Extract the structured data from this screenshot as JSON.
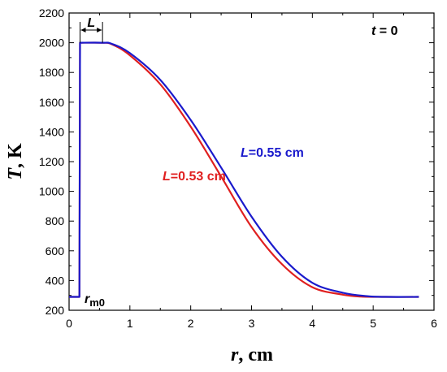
{
  "chart_data": {
    "type": "line",
    "xlabel": {
      "var": "r",
      "unit": ", cm"
    },
    "ylabel": {
      "var": "T",
      "unit": ", K"
    },
    "xlim": [
      0,
      6
    ],
    "ylim": [
      200,
      2200
    ],
    "xticks": [
      "0",
      "1",
      "2",
      "3",
      "4",
      "5",
      "6"
    ],
    "yticks": [
      "200",
      "400",
      "600",
      "800",
      "1000",
      "1200",
      "1400",
      "1600",
      "1800",
      "2000",
      "2200"
    ],
    "grid": false,
    "series": [
      {
        "name": "L=0.53 cm",
        "label": {
          "var": "L",
          "rest": "=0.53 cm"
        },
        "color": "#e02020",
        "points": [
          [
            0,
            290
          ],
          [
            0.17,
            290
          ],
          [
            0.18,
            2000
          ],
          [
            0.53,
            2000
          ],
          [
            0.7,
            1990
          ],
          [
            1.0,
            1915
          ],
          [
            1.5,
            1720
          ],
          [
            2.0,
            1435
          ],
          [
            2.5,
            1100
          ],
          [
            3.0,
            760
          ],
          [
            3.5,
            510
          ],
          [
            4.0,
            355
          ],
          [
            4.5,
            305
          ],
          [
            4.8,
            292
          ],
          [
            5.2,
            290
          ],
          [
            5.75,
            290
          ]
        ]
      },
      {
        "name": "L=0.55 cm",
        "label": {
          "var": "L",
          "rest": "=0.55 cm"
        },
        "color": "#1a1acc",
        "points": [
          [
            0,
            290
          ],
          [
            0.17,
            290
          ],
          [
            0.18,
            2000
          ],
          [
            0.55,
            2000
          ],
          [
            0.7,
            1993
          ],
          [
            1.0,
            1930
          ],
          [
            1.5,
            1750
          ],
          [
            2.0,
            1480
          ],
          [
            2.5,
            1160
          ],
          [
            3.0,
            830
          ],
          [
            3.5,
            560
          ],
          [
            4.0,
            385
          ],
          [
            4.5,
            318
          ],
          [
            4.9,
            295
          ],
          [
            5.2,
            290
          ],
          [
            5.75,
            290
          ]
        ]
      }
    ],
    "annotations": {
      "time": {
        "var": "t",
        "rest": " = 0"
      },
      "width_marker": {
        "text": "L",
        "from": 0.18,
        "to": 0.55,
        "y": 2000
      },
      "rm0": {
        "var": "r",
        "sub": "m0"
      }
    }
  }
}
